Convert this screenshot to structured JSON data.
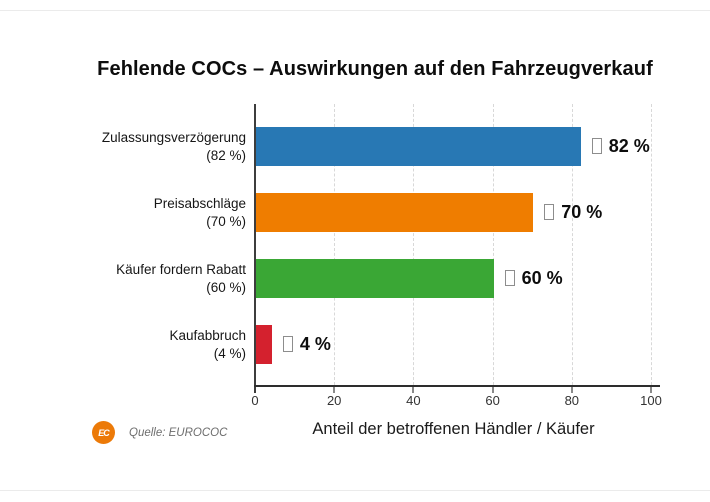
{
  "chart_data": {
    "type": "bar",
    "orientation": "horizontal",
    "title": "Fehlende COCs – Auswirkungen auf den Fahrzeugverkauf",
    "categories": [
      "Zulassungsverzögerung",
      "Preisabschläge",
      "Käufer fordern Rabatt",
      "Kaufabbruch"
    ],
    "category_sublabels": [
      "(82 %)",
      "(70 %)",
      "(60 %)",
      "(4 %)"
    ],
    "values": [
      82,
      70,
      60,
      4
    ],
    "value_labels": [
      "82 %",
      "70 %",
      "60 %",
      "4 %"
    ],
    "bar_colors": [
      "#2878b4",
      "#ef7d00",
      "#3aa735",
      "#d4212e"
    ],
    "xlabel": "Anteil der betroffenen Händler / Käufer",
    "xlim": [
      0,
      100
    ],
    "xticks": [
      0,
      20,
      40,
      60,
      80,
      100
    ],
    "grid": "vertical-dashed",
    "legend": "none"
  },
  "source": {
    "label": "Quelle: EUROCOC",
    "logo_text": "EC"
  },
  "colors": {
    "grid": "#d8d8d8",
    "axis": "#3d3d3d",
    "logo_orange": "#ec7a08"
  }
}
